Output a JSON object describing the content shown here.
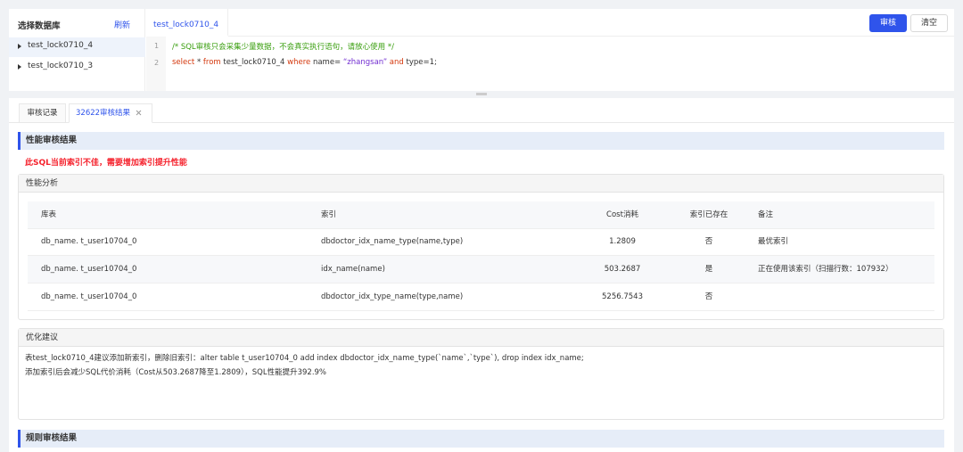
{
  "sidebar": {
    "title": "选择数据库",
    "refresh": "刷新",
    "items": [
      "test_lock0710_4",
      "test_lock0710_3"
    ]
  },
  "editor": {
    "tab": "test_lock0710_4",
    "buttons": [
      "审核",
      "清空"
    ],
    "lines": [
      {
        "number": 1,
        "tokens": [
          "/* SQL审核只会采集少量数据，不会真实执行语句，请放心使用 */"
        ]
      },
      {
        "number": 2,
        "tokens": [
          "select",
          " * ",
          "from",
          " test_lock0710_4 ",
          "where",
          " name= ",
          "“zhangsan”",
          " and ",
          "type=1;"
        ]
      }
    ]
  },
  "result_tabs": [
    "审核记录",
    "32622审核结果"
  ],
  "performance": {
    "title": "性能审核结果",
    "warning": "此SQL当前索引不佳，需要增加索引提升性能",
    "analysis_title": "性能分析",
    "table": {
      "header": [
        "库表",
        "索引",
        "Cost消耗",
        "索引已存在",
        "备注"
      ],
      "rows": [
        [
          "db_name. t_user10704_0",
          "dbdoctor_idx_name_type(name,type)",
          1.2809,
          "否",
          "最优索引"
        ],
        [
          "db_name. t_user10704_0",
          "idx_name(name)",
          503.2687,
          "是",
          "正在使用该索引（扫描行数：107932）"
        ],
        [
          "db_name. t_user10704_0",
          "dbdoctor_idx_type_name(type,name)",
          5256.7543,
          "否"
        ]
      ]
    }
  },
  "advice": {
    "title": "优化建议",
    "lines": [
      "表test_lock0710_4建议添加新索引，删除旧索引：alter table t_user10704_0 add index dbdoctor_idx_name_type(`name`,`type`), drop index idx_name;",
      "添加索引后会减少SQL代价消耗（Cost从503.2687降至1.2809），SQL性能提升392.9%"
    ]
  },
  "rules": {
    "title": "规则审核结果"
  }
}
